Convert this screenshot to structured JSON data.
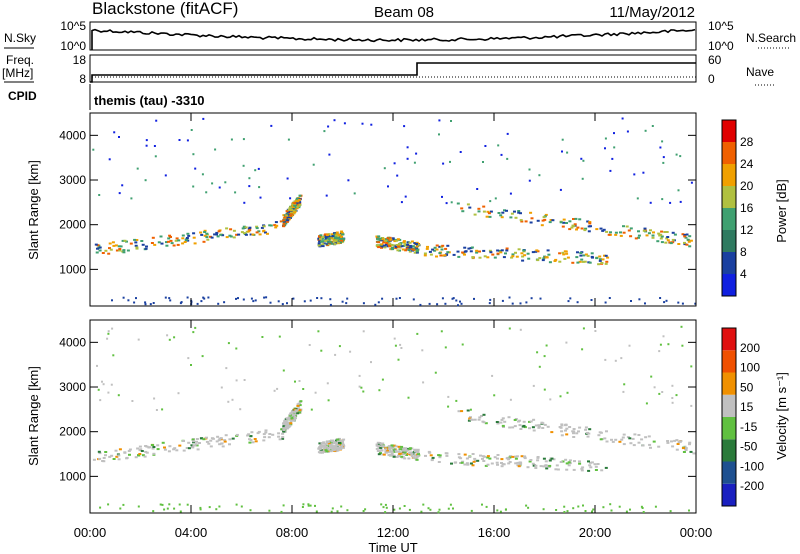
{
  "header": {
    "station": "Blackstone (fitACF)",
    "beam": "Beam 08",
    "date": "11/May/2012"
  },
  "top_panels": {
    "nsky_label": "N.Sky",
    "nsky_ticks": [
      "10^5",
      "10^0"
    ],
    "nsearch_label": "N.Search",
    "nsearch_ticks": [
      "10^5",
      "10^0"
    ],
    "freq_label": "Freq.",
    "freq_unit": "[MHz]",
    "freq_ticks": [
      "18",
      "8"
    ],
    "nave_label": "Nave",
    "nave_ticks": [
      "60",
      "0"
    ],
    "cpid_label": "CPID",
    "cpid_value": "themis (tau) -3310"
  },
  "chart_data": [
    {
      "type": "heatmap",
      "name": "power",
      "ylabel": "Slant Range [km]",
      "yticks": [
        "4000",
        "3000",
        "2000",
        "1000"
      ],
      "ylim": [
        180,
        4500
      ],
      "xticks": [
        "00:00",
        "04:00",
        "08:00",
        "12:00",
        "16:00",
        "20:00",
        "00:00"
      ],
      "xlim_hours": [
        0,
        24
      ],
      "colorbar": {
        "label": "Power [dB]",
        "ticks": [
          "28",
          "24",
          "20",
          "16",
          "12",
          "8",
          "4"
        ],
        "colors": [
          "#1020e0",
          "#1a40a0",
          "#2f7a60",
          "#3fa070",
          "#b0c040",
          "#f0a000",
          "#f06000",
          "#e00000"
        ]
      }
    },
    {
      "type": "heatmap",
      "name": "velocity",
      "ylabel": "Slant Range [km]",
      "yticks": [
        "4000",
        "3000",
        "2000",
        "1000"
      ],
      "ylim": [
        180,
        4500
      ],
      "xticks": [
        "00:00",
        "04:00",
        "08:00",
        "12:00",
        "16:00",
        "20:00",
        "00:00"
      ],
      "xlim_hours": [
        0,
        24
      ],
      "xlabel": "Time UT",
      "colorbar": {
        "label": "Velocity [m s⁻¹]",
        "ticks": [
          "200",
          "100",
          "50",
          "15",
          "-15",
          "-50",
          "-100",
          "-200"
        ],
        "colors": [
          "#1a20c0",
          "#1e5090",
          "#2a7a3a",
          "#60c040",
          "#c0c0c0",
          "#f09000",
          "#f05000",
          "#e01010"
        ]
      }
    }
  ],
  "scatter_bands_km": [
    {
      "from_hour": 0.1,
      "to_hour": 7.6,
      "start_km": 1450,
      "end_km": 1980
    },
    {
      "from_hour": 7.6,
      "to_hour": 8.3,
      "start_km": 2100,
      "end_km": 2600
    },
    {
      "from_hour": 9.0,
      "to_hour": 10.0,
      "start_km": 1650,
      "end_km": 1750
    },
    {
      "from_hour": 11.3,
      "to_hour": 13.0,
      "start_km": 1650,
      "end_km": 1500
    },
    {
      "from_hour": 13.2,
      "to_hour": 20.5,
      "start_km": 1450,
      "end_km": 1250
    },
    {
      "from_hour": 14.5,
      "to_hour": 23.9,
      "start_km": 2400,
      "end_km": 1650
    }
  ]
}
